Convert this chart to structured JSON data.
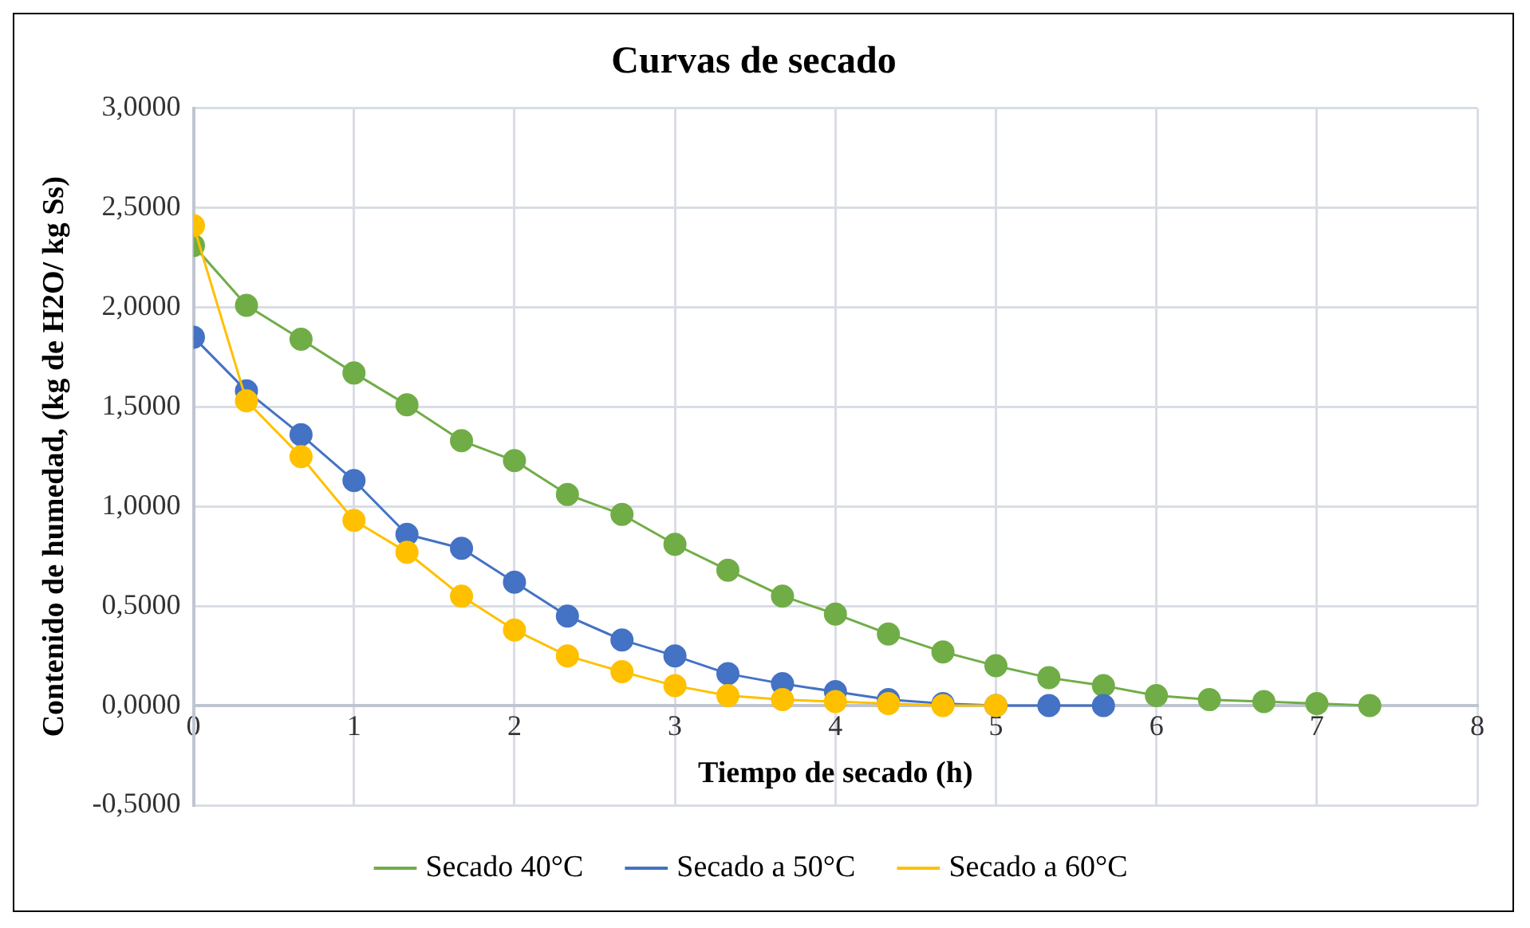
{
  "chart_data": {
    "type": "line",
    "title": "Curvas de secado",
    "xlabel": "Tiempo de secado (h)",
    "ylabel": "Contenido de humedad, (kg de H2O/ kg Ss)",
    "xlim": [
      0,
      8
    ],
    "xticks": [
      0,
      1,
      2,
      3,
      4,
      5,
      6,
      7,
      8
    ],
    "ylim": [
      -0.5,
      3
    ],
    "yticks": [
      {
        "value": -0.5,
        "label": "-0,5000"
      },
      {
        "value": 0,
        "label": "0,0000"
      },
      {
        "value": 0.5,
        "label": "0,5000"
      },
      {
        "value": 1,
        "label": "1,0000"
      },
      {
        "value": 1.5,
        "label": "1,5000"
      },
      {
        "value": 2,
        "label": "2,0000"
      },
      {
        "value": 2.5,
        "label": "2,5000"
      },
      {
        "value": 3,
        "label": "3,0000"
      }
    ],
    "grid": true,
    "legend": "bottom",
    "marker": "circle",
    "line_style": "solid",
    "series": [
      {
        "name": "Secado 40°C",
        "color": "#70ad47",
        "x": [
          0,
          0.33,
          0.67,
          1,
          1.33,
          1.67,
          2,
          2.33,
          2.67,
          3,
          3.33,
          3.67,
          4,
          4.33,
          4.67,
          5,
          5.33,
          5.67,
          6,
          6.33,
          6.67,
          7,
          7.33
        ],
        "values": [
          2.31,
          2.01,
          1.84,
          1.67,
          1.51,
          1.33,
          1.23,
          1.06,
          0.96,
          0.81,
          0.68,
          0.55,
          0.46,
          0.36,
          0.27,
          0.2,
          0.14,
          0.1,
          0.05,
          0.03,
          0.02,
          0.01,
          0
        ]
      },
      {
        "name": "Secado a 50°C",
        "color": "#4472c4",
        "x": [
          0,
          0.33,
          0.67,
          1,
          1.33,
          1.67,
          2,
          2.33,
          2.67,
          3,
          3.33,
          3.67,
          4,
          4.33,
          4.67,
          5,
          5.33,
          5.67
        ],
        "values": [
          1.85,
          1.58,
          1.36,
          1.13,
          0.86,
          0.79,
          0.62,
          0.45,
          0.33,
          0.25,
          0.16,
          0.11,
          0.07,
          0.03,
          0.01,
          0,
          0,
          0
        ]
      },
      {
        "name": "Secado a 60°C",
        "color": "#ffc000",
        "x": [
          0,
          0.33,
          0.67,
          1,
          1.33,
          1.67,
          2,
          2.33,
          2.67,
          3,
          3.33,
          3.67,
          4,
          4.33,
          4.67,
          5
        ],
        "values": [
          2.41,
          1.53,
          1.25,
          0.93,
          0.77,
          0.55,
          0.38,
          0.25,
          0.17,
          0.1,
          0.05,
          0.03,
          0.02,
          0.01,
          0,
          0
        ]
      }
    ]
  }
}
